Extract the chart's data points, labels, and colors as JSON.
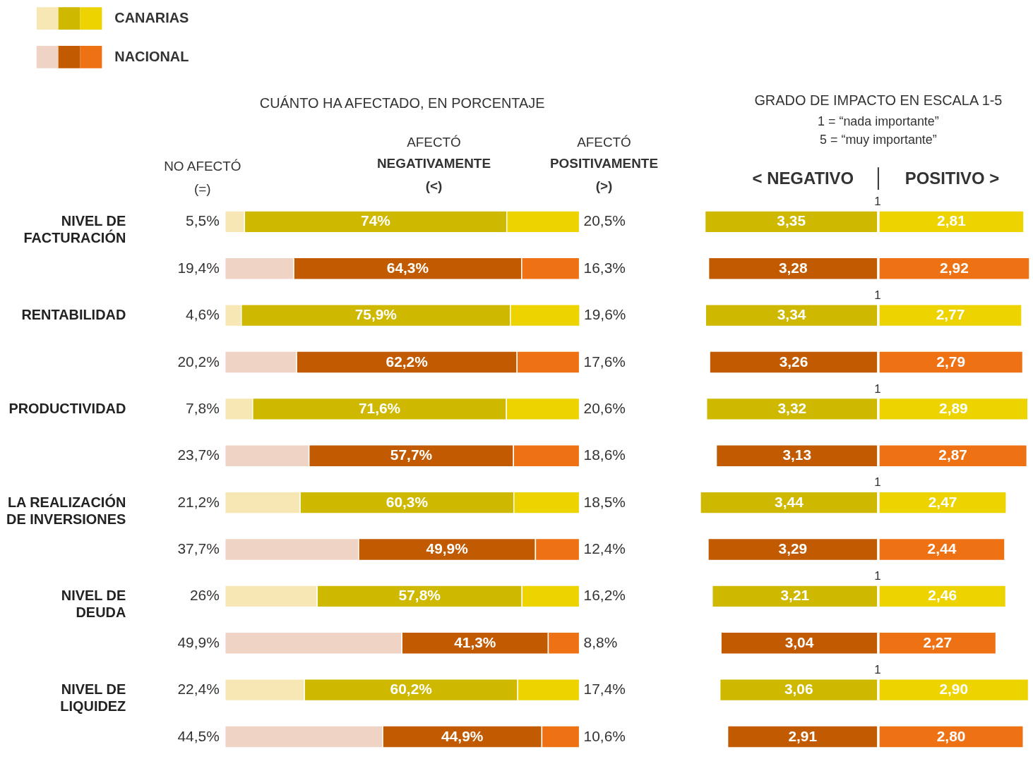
{
  "chart_data": [
    {
      "type": "bar",
      "orientation": "horizontal",
      "stacked": true,
      "title": "CUÁNTO HA AFECTADO, EN PORCENTAJE",
      "legend": "top left",
      "tick_labels": "y",
      "xlim": [
        0,
        100
      ],
      "categories": [
        "NIVEL DE FACTURACIÓN",
        null,
        "RENTABILIDAD",
        null,
        "PRODUCTIVIDAD",
        null,
        "LA REALIZACIÓN DE INVERSIONES",
        null,
        "NIVEL DE DEUDA",
        null,
        "NIVEL DE LIQUIDEZ",
        null
      ],
      "annotations": [
        "NO AFECTÓ",
        "(=)",
        "AFECTÓ",
        "NEGATIVAMENTE",
        "(<)",
        "AFECTÓ",
        "POSITIVAMENTE",
        "(>)"
      ],
      "series": [
        {
          "color": "#f7e7b4",
          "values": [
            5.5,
            null,
            4.6,
            null,
            7.8,
            null,
            21.2,
            null,
            26,
            null,
            22.4,
            null
          ],
          "value_labels": [
            "5,5%",
            null,
            "4,6%",
            null,
            "7,8%",
            null,
            "21,2%",
            null,
            "26%",
            null,
            "22,4%",
            null
          ]
        },
        {
          "color": "#cfb900",
          "values": [
            74,
            null,
            75.9,
            null,
            71.6,
            null,
            60.3,
            null,
            57.8,
            null,
            60.2,
            null
          ],
          "value_labels": [
            "74%",
            null,
            "75,9%",
            null,
            "71,6%",
            null,
            "60,3%",
            null,
            "57,8%",
            null,
            "60,2%",
            null
          ]
        },
        {
          "name": "CANARIAS",
          "color": "#edd300",
          "values": [
            20.5,
            null,
            19.6,
            null,
            20.6,
            null,
            18.5,
            null,
            16.2,
            null,
            17.4,
            null
          ],
          "value_labels": [
            "20,5%",
            null,
            "19,6%",
            null,
            "20,6%",
            null,
            "18,5%",
            null,
            "16,2%",
            null,
            "17,4%",
            null
          ]
        },
        {
          "color": "#efd3c4",
          "values": [
            null,
            19.4,
            null,
            20.2,
            null,
            23.7,
            null,
            37.7,
            null,
            49.9,
            null,
            44.5
          ],
          "value_labels": [
            null,
            "19,4%",
            null,
            "20,2%",
            null,
            "23,7%",
            null,
            "37,7%",
            null,
            "49,9%",
            null,
            "44,5%"
          ]
        },
        {
          "color": "#c15a00",
          "values": [
            null,
            64.3,
            null,
            62.2,
            null,
            57.7,
            null,
            49.9,
            null,
            41.3,
            null,
            44.9
          ],
          "value_labels": [
            null,
            "64,3%",
            null,
            "62,2%",
            null,
            "57,7%",
            null,
            "49,9%",
            null,
            "41,3%",
            null,
            "44,9%"
          ]
        },
        {
          "name": "NACIONAL",
          "color": "#ee7114",
          "values": [
            null,
            16.3,
            null,
            17.6,
            null,
            18.6,
            null,
            12.4,
            null,
            8.8,
            null,
            10.6
          ],
          "value_labels": [
            null,
            "16,3%",
            null,
            "17,6%",
            null,
            "18,6%",
            null,
            "12,4%",
            null,
            "8,8%",
            null,
            "10,6%"
          ]
        }
      ]
    },
    {
      "type": "bar",
      "orientation": "horizontal",
      "title": "GRADO DE IMPACTO EN ESCALA 1-5",
      "tick_labels": false,
      "xlim": [
        3.44,
        0
      ],
      "annotations": [
        "1 = “nada importante”",
        "5 = “muy importante”",
        "< NEGATIVO",
        "1",
        "1",
        "1",
        "1",
        "1",
        "1"
      ],
      "series": [
        {
          "values": [
            3.35,
            3.28,
            3.34,
            3.26,
            3.32,
            3.13,
            3.44,
            3.29,
            3.21,
            3.04,
            3.06,
            2.91
          ],
          "colors": [
            "#cfb900",
            "#c15a00",
            "#cfb900",
            "#c15a00",
            "#cfb900",
            "#c15a00",
            "#cfb900",
            "#c15a00",
            "#cfb900",
            "#c15a00",
            "#cfb900",
            "#c15a00"
          ],
          "value_labels": [
            "3,35",
            "3,28",
            "3,34",
            "3,26",
            "3,32",
            "3,13",
            "3,44",
            "3,29",
            "3,21",
            "3,04",
            "3,06",
            "2,91"
          ]
        }
      ]
    },
    {
      "type": "bar",
      "orientation": "horizontal",
      "tick_labels": false,
      "xlim": [
        0,
        2.92
      ],
      "annotations": [
        "POSITIVO >"
      ],
      "series": [
        {
          "values": [
            2.81,
            2.92,
            2.77,
            2.79,
            2.89,
            2.87,
            2.47,
            2.44,
            2.46,
            2.27,
            2.9,
            2.8
          ],
          "colors": [
            "#edd300",
            "#ee7114",
            "#edd300",
            "#ee7114",
            "#edd300",
            "#ee7114",
            "#edd300",
            "#ee7114",
            "#edd300",
            "#ee7114",
            "#edd300",
            "#ee7114"
          ],
          "value_labels": [
            "2,81",
            "2,92",
            "2,77",
            "2,79",
            "2,89",
            "2,87",
            "2,47",
            "2,44",
            "2,46",
            "2,27",
            "2,90",
            "2,80"
          ]
        }
      ]
    }
  ]
}
